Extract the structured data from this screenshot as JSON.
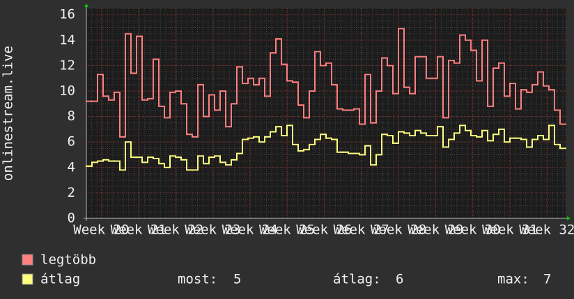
{
  "chart_data": {
    "type": "line",
    "step": true,
    "y_label": "onlinestream.live",
    "x": [
      19.6,
      19.75,
      19.9,
      20.05,
      20.2,
      20.35,
      20.5,
      20.65,
      20.8,
      20.95,
      21.1,
      21.25,
      21.4,
      21.55,
      21.7,
      21.85,
      22.0,
      22.15,
      22.3,
      22.45,
      22.6,
      22.75,
      22.9,
      23.05,
      23.2,
      23.35,
      23.5,
      23.65,
      23.8,
      23.95,
      24.1,
      24.25,
      24.4,
      24.55,
      24.7,
      24.85,
      25.0,
      25.15,
      25.3,
      25.45,
      25.6,
      25.75,
      25.9,
      26.05,
      26.2,
      26.35,
      26.5,
      26.65,
      26.8,
      26.95,
      27.1,
      27.25,
      27.4,
      27.55,
      27.7,
      27.85,
      28.0,
      28.15,
      28.3,
      28.45,
      28.6,
      28.75,
      28.9,
      29.05,
      29.2,
      29.35,
      29.5,
      29.65,
      29.8,
      29.95,
      30.1,
      30.25,
      30.4,
      30.55,
      30.7,
      30.85,
      31.0,
      31.15,
      31.3,
      31.45,
      31.6,
      31.75,
      31.9,
      32.05,
      32.2,
      32.35
    ],
    "series": [
      {
        "name": "legtöbb",
        "color": "#ff7f7f",
        "values": [
          9.2,
          9.2,
          11.3,
          9.6,
          9.3,
          9.9,
          6.4,
          14.5,
          11.4,
          14.3,
          9.3,
          9.4,
          12.5,
          8.8,
          7.9,
          9.9,
          10.0,
          9.0,
          6.6,
          6.4,
          10.5,
          8.0,
          9.7,
          8.5,
          10.0,
          7.2,
          9.0,
          11.9,
          10.6,
          11.0,
          10.5,
          11.0,
          9.6,
          13.0,
          14.1,
          12.1,
          10.8,
          10.7,
          8.9,
          7.9,
          10.0,
          13.1,
          12.0,
          12.2,
          10.5,
          8.6,
          8.5,
          8.5,
          8.6,
          7.4,
          11.3,
          7.5,
          10.0,
          12.6,
          12.0,
          9.8,
          14.9,
          10.3,
          9.8,
          12.7,
          12.7,
          11.0,
          11.0,
          12.7,
          7.9,
          12.4,
          12.2,
          14.4,
          14.0,
          13.2,
          10.8,
          14.0,
          8.8,
          11.8,
          12.2,
          9.6,
          10.6,
          8.6,
          10.1,
          9.9,
          10.5,
          11.5,
          10.4,
          10.1,
          8.5,
          7.4
        ]
      },
      {
        "name": "átlag",
        "color": "#ffff7f",
        "values": [
          4.1,
          4.4,
          4.5,
          4.6,
          4.5,
          4.5,
          3.8,
          6.0,
          4.8,
          4.8,
          4.4,
          4.8,
          4.7,
          4.3,
          4.0,
          4.9,
          4.8,
          4.6,
          3.8,
          3.8,
          4.9,
          4.3,
          4.8,
          4.9,
          4.4,
          4.2,
          4.6,
          5.1,
          6.2,
          6.3,
          6.4,
          6.0,
          6.4,
          6.8,
          7.2,
          6.5,
          7.3,
          5.8,
          5.3,
          5.4,
          5.8,
          6.2,
          6.6,
          6.3,
          6.2,
          5.2,
          5.2,
          5.1,
          5.1,
          5.0,
          5.7,
          4.2,
          5.0,
          6.6,
          6.5,
          5.9,
          6.8,
          6.7,
          6.5,
          6.9,
          6.7,
          6.5,
          6.5,
          7.2,
          5.6,
          6.2,
          6.7,
          7.3,
          6.9,
          6.5,
          6.4,
          6.9,
          6.1,
          6.6,
          7.0,
          6.0,
          6.3,
          6.3,
          6.2,
          5.6,
          6.2,
          6.5,
          6.2,
          7.3,
          5.8,
          5.5
        ]
      }
    ],
    "xlim": [
      19.6,
      32.5
    ],
    "xticks": [
      {
        "value": 20,
        "label": "Week 20"
      },
      {
        "value": 21,
        "label": "Week 21"
      },
      {
        "value": 22,
        "label": "Week 22"
      },
      {
        "value": 23,
        "label": "Week 23"
      },
      {
        "value": 24,
        "label": "Week 24"
      },
      {
        "value": 25,
        "label": "Week 25"
      },
      {
        "value": 26,
        "label": "Week 26"
      },
      {
        "value": 27,
        "label": "Week 27"
      },
      {
        "value": 28,
        "label": "Week 28"
      },
      {
        "value": 29,
        "label": "Week 29"
      },
      {
        "value": 30,
        "label": "Week 30"
      },
      {
        "value": 31,
        "label": "Week 31"
      },
      {
        "value": 32,
        "label": "Week 32"
      }
    ],
    "ylim": [
      0,
      16.5
    ],
    "yticks": [
      0,
      2,
      4,
      6,
      8,
      10,
      12,
      14,
      16
    ],
    "grid": true,
    "stats": [
      {
        "label": "most:",
        "value": 5
      },
      {
        "label": "átlag:",
        "value": 6
      },
      {
        "label": "max:",
        "value": 7
      }
    ]
  }
}
